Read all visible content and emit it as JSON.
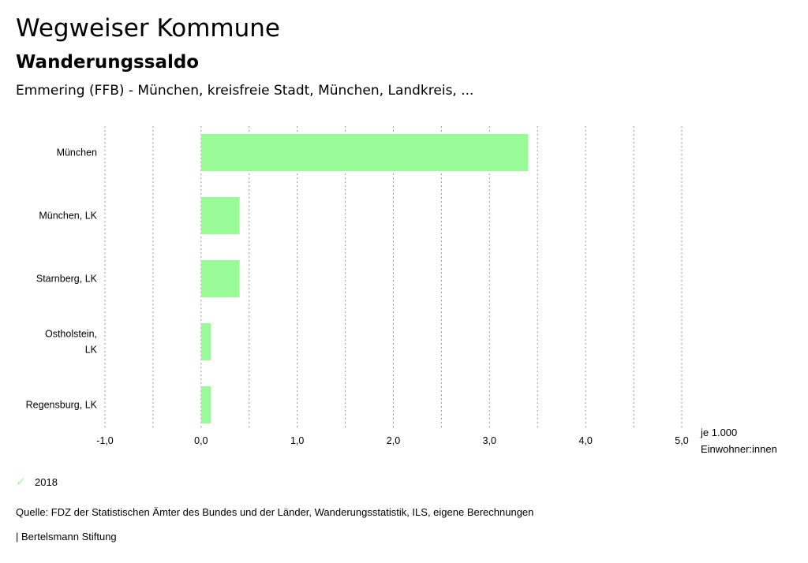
{
  "header": {
    "title": "Wegweiser Kommune",
    "subtitle": "Wanderungssaldo",
    "region": "Emmering (FFB) - München, kreisfreie Stadt, München, Landkreis, ..."
  },
  "chart_data": {
    "type": "bar",
    "orientation": "horizontal",
    "categories": [
      "München",
      "München, LK",
      "Starnberg, LK",
      "Ostholstein, LK",
      "Regensburg, LK"
    ],
    "category_lines": [
      [
        "München"
      ],
      [
        "München, LK"
      ],
      [
        "Starnberg, LK"
      ],
      [
        "Ostholstein,",
        "LK"
      ],
      [
        "Regensburg, LK"
      ]
    ],
    "series": [
      {
        "name": "2018",
        "values": [
          3.4,
          0.4,
          0.4,
          0.1,
          0.1
        ],
        "color": "#98fb98"
      }
    ],
    "xlim": [
      -1.0,
      5.0
    ],
    "xticks": [
      -1.0,
      0.0,
      1.0,
      2.0,
      3.0,
      4.0,
      5.0
    ],
    "xtick_labels": [
      "-1,0",
      "0,0",
      "1,0",
      "2,0",
      "3,0",
      "4,0",
      "5,0"
    ],
    "grid": "vertical-dotted",
    "unit_lines": [
      "je 1.000",
      "Einwohner:innen"
    ],
    "legend_position": "bottom-left"
  },
  "legend": {
    "label": "2018",
    "icon": "check-icon",
    "color": "#98fb98"
  },
  "footer": {
    "source": "Quelle: FDZ der Statistischen Ämter des Bundes und der Länder, Wanderungsstatistik, ILS, eigene Berechnungen",
    "brand": "| Bertelsmann Stiftung"
  }
}
